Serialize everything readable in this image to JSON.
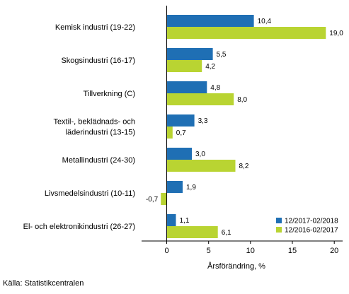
{
  "chart_data": {
    "type": "bar",
    "orientation": "horizontal",
    "categories": [
      "Kemisk industri (19-22)",
      "Skogsindustri (16-17)",
      "Tillverkning (C)",
      "Textil-, beklädnads- och läderindustri (13-15)",
      "Metallindustri (24-30)",
      "Livsmedelsindustri (10-11)",
      "El- och elektronikindustri (26-27)"
    ],
    "category_lines": [
      [
        "Kemisk industri (19-22)"
      ],
      [
        "Skogsindustri (16-17)"
      ],
      [
        "Tillverkning (C)"
      ],
      [
        "Textil-, beklädnads- och",
        "läderindustri (13-15)"
      ],
      [
        "Metallindustri (24-30)"
      ],
      [
        "Livsmedelsindustri (10-11)"
      ],
      [
        "El- och elektronikindustri (26-27)"
      ]
    ],
    "series": [
      {
        "name": "12/2017-02/2018",
        "color": "#1f6fb4",
        "values": [
          10.4,
          5.5,
          4.8,
          3.3,
          3.0,
          1.9,
          1.1
        ],
        "labels": [
          "10,4",
          "5,5",
          "4,8",
          "3,3",
          "3,0",
          "1,9",
          "1,1"
        ]
      },
      {
        "name": "12/2016-02/2017",
        "color": "#b9d432",
        "values": [
          19.0,
          4.2,
          8.0,
          0.7,
          8.2,
          -0.7,
          6.1
        ],
        "labels": [
          "19,0",
          "4,2",
          "8,0",
          "0,7",
          "8,2",
          "-0,7",
          "6,1"
        ]
      }
    ],
    "xlim": [
      -3,
      21
    ],
    "xticks": [
      0,
      5,
      10,
      15,
      20
    ],
    "xtick_labels": [
      "0",
      "5",
      "10",
      "15",
      "20"
    ],
    "xlabel": "Årsförändring, %",
    "ylabel": "",
    "title": "",
    "grid": false,
    "legend_position": "bottom-right"
  },
  "source": "Källa: Statistikcentralen"
}
